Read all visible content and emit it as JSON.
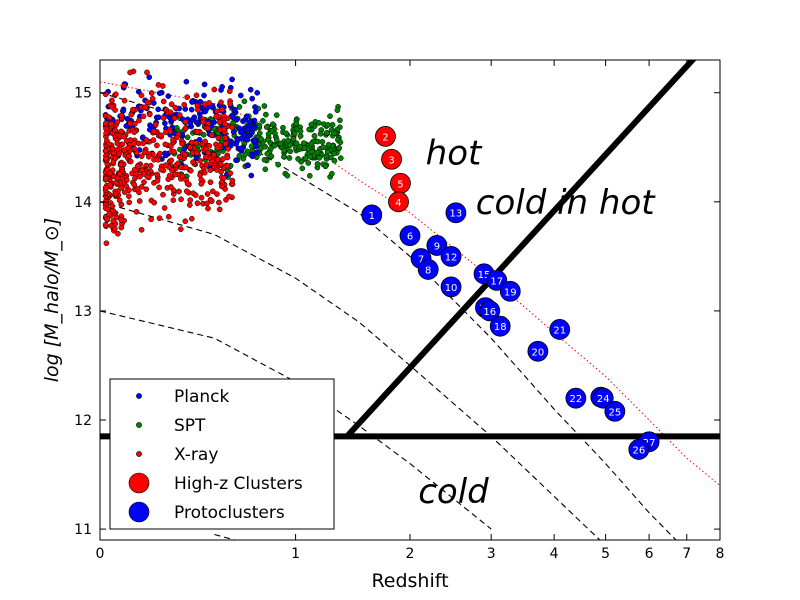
{
  "chart_data": {
    "type": "scatter",
    "xlabel": "Redshift",
    "ylabel": "log [M_halo/M_⊙]",
    "x_axis": {
      "ticks": [
        {
          "label": "0",
          "z": 0
        },
        {
          "label": "1",
          "z": 1
        },
        {
          "label": "2",
          "z": 2
        },
        {
          "label": "3",
          "z": 3
        },
        {
          "label": "4",
          "z": 4
        },
        {
          "label": "5",
          "z": 5
        },
        {
          "label": "6",
          "z": 6
        },
        {
          "label": "7",
          "z": 7
        },
        {
          "label": "8",
          "z": 8
        }
      ],
      "scale": "log(1+z)"
    },
    "ylim": [
      10.9,
      15.3
    ],
    "y_ticks": [
      "11",
      "12",
      "13",
      "14",
      "15"
    ],
    "regions": [
      {
        "label": "hot",
        "z": 2.5,
        "logM": 14.45
      },
      {
        "label": "cold in hot",
        "z": 4.2,
        "logM": 14.0
      },
      {
        "label": "cold",
        "z": 2.5,
        "logM": 11.35
      }
    ],
    "threshold_lines": {
      "horizontal_logM": 11.85,
      "diagonal": [
        [
          1.4,
          11.85
        ],
        [
          8.0,
          15.3
        ]
      ]
    },
    "dashed_tracks": [
      [
        [
          0,
          15.0
        ],
        [
          0.5,
          14.7
        ],
        [
          1,
          14.25
        ],
        [
          1.5,
          13.9
        ],
        [
          2,
          13.5
        ],
        [
          3,
          12.75
        ],
        [
          4,
          12.1
        ],
        [
          5,
          11.6
        ],
        [
          6,
          11.15
        ],
        [
          7,
          10.8
        ]
      ],
      [
        [
          0,
          14.0
        ],
        [
          0.5,
          13.7
        ],
        [
          1,
          13.3
        ],
        [
          1.5,
          12.9
        ],
        [
          2,
          12.5
        ],
        [
          3,
          11.85
        ],
        [
          4,
          11.3
        ],
        [
          5,
          10.85
        ]
      ],
      [
        [
          0,
          13.0
        ],
        [
          0.5,
          12.75
        ],
        [
          1,
          12.35
        ],
        [
          1.5,
          11.95
        ],
        [
          2,
          11.6
        ],
        [
          3,
          11.0
        ]
      ],
      [
        [
          0.5,
          10.95
        ],
        [
          1,
          10.75
        ]
      ]
    ],
    "dotted_track": [
      [
        0,
        15.1
      ],
      [
        0.5,
        14.9
      ],
      [
        1,
        14.6
      ],
      [
        1.5,
        14.2
      ],
      [
        2,
        13.9
      ],
      [
        3,
        13.3
      ],
      [
        4,
        12.8
      ],
      [
        5,
        12.4
      ],
      [
        6,
        12.0
      ],
      [
        7,
        11.65
      ],
      [
        8,
        11.4
      ]
    ],
    "legend": {
      "placement": "lower-left",
      "entries": [
        {
          "label": "Planck",
          "color": "#0000ff",
          "marker": "small"
        },
        {
          "label": "SPT",
          "color": "#008000",
          "marker": "small"
        },
        {
          "label": "X-ray",
          "color": "#ff0000",
          "marker": "small"
        },
        {
          "label": "High-z Clusters",
          "color": "#ff0000",
          "marker": "large"
        },
        {
          "label": "Protoclusters",
          "color": "#0000ff",
          "marker": "large"
        }
      ]
    },
    "high_z_clusters": [
      {
        "id": "2",
        "z": 1.75,
        "logM": 14.6
      },
      {
        "id": "3",
        "z": 1.81,
        "logM": 14.39
      },
      {
        "id": "5",
        "z": 1.9,
        "logM": 14.17
      },
      {
        "id": "4",
        "z": 1.88,
        "logM": 14.0
      }
    ],
    "protoclusters": [
      {
        "id": "1",
        "z": 1.62,
        "logM": 13.88
      },
      {
        "id": "13",
        "z": 2.53,
        "logM": 13.9
      },
      {
        "id": "6",
        "z": 2.0,
        "logM": 13.69
      },
      {
        "id": "9",
        "z": 2.3,
        "logM": 13.6
      },
      {
        "id": "12",
        "z": 2.47,
        "logM": 13.5
      },
      {
        "id": "7",
        "z": 2.12,
        "logM": 13.48
      },
      {
        "id": "8",
        "z": 2.2,
        "logM": 13.38
      },
      {
        "id": "10",
        "z": 2.47,
        "logM": 13.22
      },
      {
        "id": "15",
        "z": 2.9,
        "logM": 13.34
      },
      {
        "id": "17",
        "z": 3.08,
        "logM": 13.28
      },
      {
        "id": "19",
        "z": 3.28,
        "logM": 13.18
      },
      {
        "id": "14",
        "z": 2.92,
        "logM": 13.03
      },
      {
        "id": "16",
        "z": 2.98,
        "logM": 13.0
      },
      {
        "id": "18",
        "z": 3.13,
        "logM": 12.86
      },
      {
        "id": "21",
        "z": 4.1,
        "logM": 12.83
      },
      {
        "id": "20",
        "z": 3.72,
        "logM": 12.63
      },
      {
        "id": "22",
        "z": 4.4,
        "logM": 12.2
      },
      {
        "id": "23",
        "z": 4.9,
        "logM": 12.21
      },
      {
        "id": "24",
        "z": 4.95,
        "logM": 12.2
      },
      {
        "id": "25",
        "z": 5.2,
        "logM": 12.08
      },
      {
        "id": "27",
        "z": 6.0,
        "logM": 11.8
      },
      {
        "id": "26",
        "z": 5.75,
        "logM": 11.73
      }
    ],
    "scatter_samples": {
      "planck": {
        "color": "#0000ff",
        "count": 220,
        "z_range": [
          0.02,
          0.75
        ],
        "logM_center": 14.7,
        "logM_spread": 0.18
      },
      "spt": {
        "color": "#008000",
        "count": 300,
        "z_range": [
          0.3,
          1.35
        ],
        "logM_center": 14.55,
        "logM_spread": 0.14
      },
      "xray": {
        "color": "#ff0000",
        "count": 520,
        "z_range": [
          0.02,
          0.6
        ],
        "logM_center": 14.45,
        "logM_spread": 0.3
      }
    }
  }
}
